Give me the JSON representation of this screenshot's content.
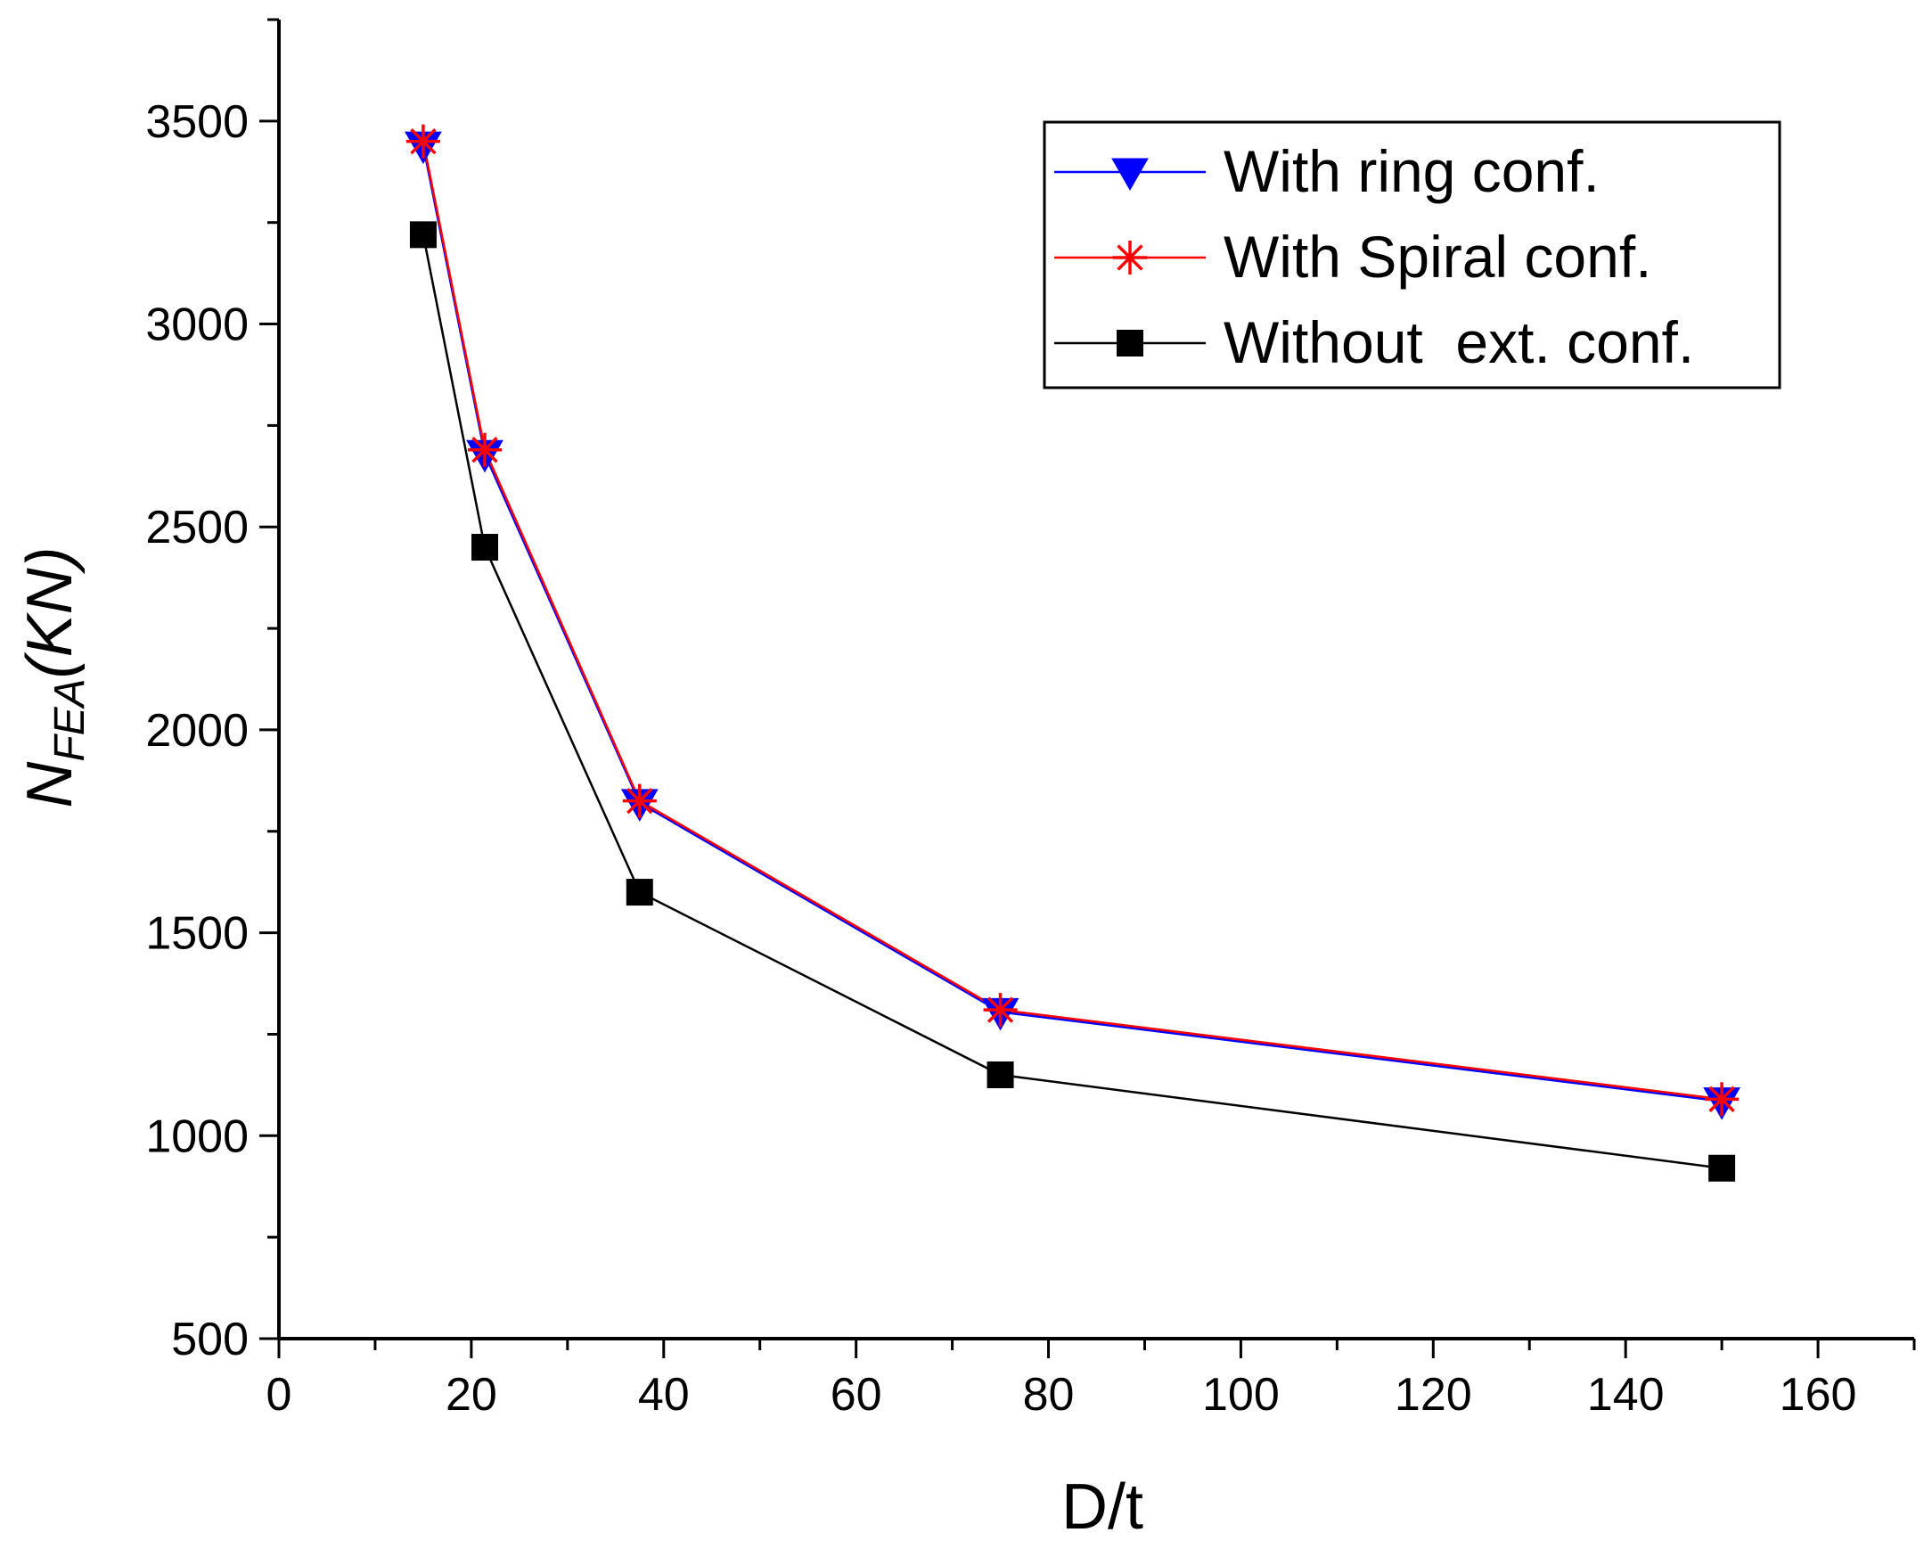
{
  "chart_data": {
    "type": "line",
    "title": "",
    "xlabel": "D/t",
    "ylabel_main": "N",
    "ylabel_subscript": "FEA",
    "ylabel_unit": "(KN)",
    "xlim": [
      0,
      170
    ],
    "ylim": [
      500,
      3750
    ],
    "x_ticks": [
      0,
      20,
      40,
      60,
      80,
      100,
      120,
      140,
      160
    ],
    "y_ticks": [
      500,
      1000,
      1500,
      2000,
      2500,
      3000,
      3500
    ],
    "x_minor_step": 10,
    "y_minor_step": 250,
    "legend_position": "top-right",
    "x": [
      15,
      21.4,
      37.5,
      75,
      150
    ],
    "series": [
      {
        "name": "With ring conf.",
        "color": "#0000ff",
        "marker": "triangle-down",
        "values": [
          3440,
          2680,
          1820,
          1305,
          1085
        ]
      },
      {
        "name": "With Spiral conf.",
        "color": "#ff0000",
        "marker": "asterisk",
        "values": [
          3450,
          2690,
          1825,
          1310,
          1090
        ]
      },
      {
        "name": "Without  ext. conf.",
        "color": "#000000",
        "marker": "square",
        "values": [
          3220,
          2450,
          1600,
          1150,
          920
        ]
      }
    ]
  }
}
